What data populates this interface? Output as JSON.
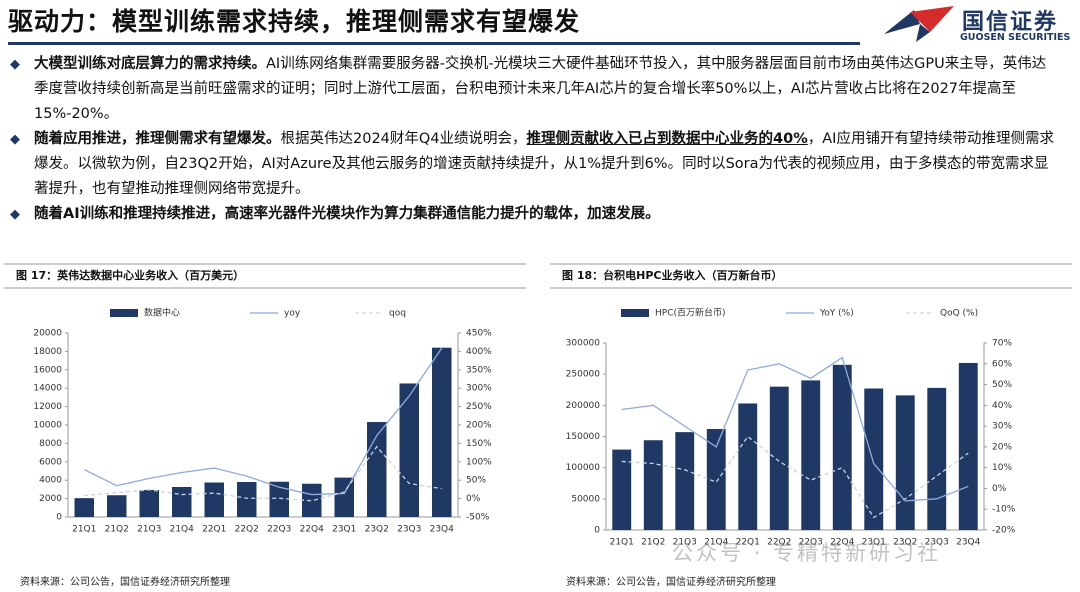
{
  "header": {
    "title": "驱动力：模型训练需求持续，推理侧需求有望爆发",
    "logo_cn": "国信证券",
    "logo_en": "GUOSEN SECURITIES"
  },
  "bullets": [
    {
      "segments": [
        {
          "text": "大模型训练对底层算力的需求持续。",
          "bold": true
        },
        {
          "text": "AI训练网络集群需要服务器-交换机-光模块三大硬件基础环节投入，其中服务器层面目前市场由英伟达GPU来主导，英伟达季度营收持续创新高是当前旺盛需求的证明；同时上游代工层面，台积电预计未来几年AI芯片的复合增长率50%以上，AI芯片营收占比将在2027年提高至15%-20%。",
          "bold": false
        }
      ]
    },
    {
      "segments": [
        {
          "text": "随着应用推进，推理侧需求有望爆发。",
          "bold": true
        },
        {
          "text": "根据英伟达2024财年Q4业绩说明会，",
          "bold": false
        },
        {
          "text": "推理侧贡献收入已占到数据中心业务的40%",
          "bold": true,
          "underline": true
        },
        {
          "text": "，AI应用铺开有望持续带动推理侧需求爆发。以微软为例，自23Q2开始，AI对Azure及其他云服务的增速贡献持续提升，从1%提升到6%。同时以Sora为代表的视频应用，由于多模态的带宽需求显著提升，也有望推动推理侧网络带宽提升。",
          "bold": false
        }
      ]
    },
    {
      "segments": [
        {
          "text": "随着AI训练和推理持续推进，高速率光器件光模块作为算力集群通信能力提升的载体，加速发展。",
          "bold": true
        }
      ]
    }
  ],
  "watermark": "公众号 · 专精特新研习社",
  "chart_data": [
    {
      "type": "bar_line",
      "title": "图 17：英伟达数据中心业务收入（百万美元）",
      "categories": [
        "21Q1",
        "21Q2",
        "21Q3",
        "21Q4",
        "22Q1",
        "22Q2",
        "22Q3",
        "22Q4",
        "23Q1",
        "23Q2",
        "23Q3",
        "23Q4"
      ],
      "series": [
        {
          "name": "数据中心",
          "type": "bar",
          "color": "#1f3864",
          "values": [
            2048,
            2366,
            2936,
            3263,
            3750,
            3806,
            3833,
            3616,
            4284,
            10323,
            14514,
            18404
          ]
        },
        {
          "name": "yoy",
          "type": "line",
          "axis": "y2",
          "color": "#8faadc",
          "dashed": false,
          "values": [
            79,
            35,
            55,
            71,
            83,
            61,
            31,
            11,
            14,
            171,
            279,
            409
          ]
        },
        {
          "name": "qoq",
          "type": "line",
          "axis": "y2",
          "color": "#c9d3e6",
          "dashed": true,
          "values": [
            8,
            16,
            24,
            11,
            15,
            1,
            1,
            -6,
            18,
            141,
            41,
            27
          ]
        }
      ],
      "ylim": [
        0,
        20000
      ],
      "yticks": [
        0,
        2000,
        4000,
        6000,
        8000,
        10000,
        12000,
        14000,
        16000,
        18000,
        20000
      ],
      "y2lim": [
        -50,
        450
      ],
      "y2ticks": [
        {
          "value": -50,
          "label": "-50%"
        },
        {
          "value": 0,
          "label": "0%"
        },
        {
          "value": 50,
          "label": "50%"
        },
        {
          "value": 100,
          "label": "100%"
        },
        {
          "value": 150,
          "label": "150%"
        },
        {
          "value": 200,
          "label": "200%"
        },
        {
          "value": 250,
          "label": "250%"
        },
        {
          "value": 300,
          "label": "300%"
        },
        {
          "value": 350,
          "label": "350%"
        },
        {
          "value": 400,
          "label": "400%"
        },
        {
          "value": 450,
          "label": "450%"
        }
      ],
      "source": "资料来源：公司公告，国信证券经济研究所整理"
    },
    {
      "type": "bar_line",
      "title": "图 18：台积电HPC业务收入（百万新台币）",
      "categories": [
        "21Q1",
        "21Q2",
        "21Q3",
        "21Q4",
        "22Q1",
        "22Q2",
        "22Q3",
        "22Q4",
        "23Q1",
        "23Q2",
        "23Q3",
        "23Q4"
      ],
      "series": [
        {
          "name": "HPC(百万新台币)",
          "type": "bar",
          "color": "#1f3864",
          "values": [
            129000,
            144000,
            157000,
            162000,
            203000,
            230000,
            240000,
            265000,
            227000,
            216000,
            228000,
            268000
          ]
        },
        {
          "name": "YoY (%)",
          "type": "line",
          "axis": "y2",
          "color": "#8faadc",
          "dashed": false,
          "values": [
            38,
            40,
            30,
            20,
            57,
            60,
            53,
            63,
            12,
            -6,
            -5,
            1
          ]
        },
        {
          "name": "QoQ (%)",
          "type": "line",
          "axis": "y2",
          "color": "#c9d3e6",
          "dashed": true,
          "values": [
            13,
            12,
            9,
            3,
            25,
            13,
            4,
            10,
            -14,
            -5,
            6,
            17
          ]
        }
      ],
      "ylim": [
        0,
        300000
      ],
      "yticks": [
        0,
        50000,
        100000,
        150000,
        200000,
        250000,
        300000
      ],
      "y2lim": [
        -20,
        70
      ],
      "y2ticks": [
        {
          "value": -20,
          "label": "-20%"
        },
        {
          "value": -10,
          "label": "-10%"
        },
        {
          "value": 0,
          "label": "0%"
        },
        {
          "value": 10,
          "label": "10%"
        },
        {
          "value": 20,
          "label": "20%"
        },
        {
          "value": 30,
          "label": "30%"
        },
        {
          "value": 40,
          "label": "40%"
        },
        {
          "value": 50,
          "label": "50%"
        },
        {
          "value": 60,
          "label": "60%"
        },
        {
          "value": 70,
          "label": "70%"
        }
      ],
      "source": "资料来源：公司公告，国信证券经济研究所整理"
    }
  ]
}
